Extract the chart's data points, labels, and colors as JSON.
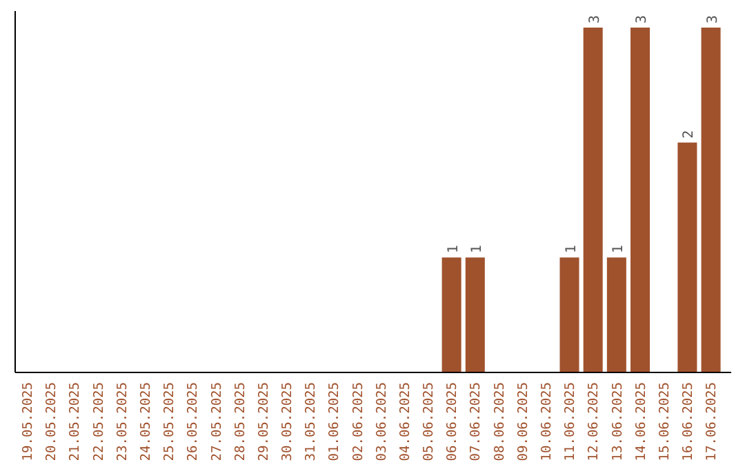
{
  "chart_data": {
    "type": "bar",
    "categories": [
      "19.05.2025",
      "20.05.2025",
      "21.05.2025",
      "22.05.2025",
      "23.05.2025",
      "24.05.2025",
      "25.05.2025",
      "26.05.2025",
      "27.05.2025",
      "28.05.2025",
      "29.05.2025",
      "30.05.2025",
      "31.05.2025",
      "01.06.2025",
      "02.06.2025",
      "03.06.2025",
      "04.06.2025",
      "05.06.2025",
      "06.06.2025",
      "07.06.2025",
      "08.06.2025",
      "09.06.2025",
      "10.06.2025",
      "11.06.2025",
      "12.06.2025",
      "13.06.2025",
      "14.06.2025",
      "15.06.2025",
      "16.06.2025",
      "17.06.2025"
    ],
    "values": [
      null,
      null,
      null,
      null,
      null,
      null,
      null,
      null,
      null,
      null,
      null,
      null,
      null,
      null,
      null,
      null,
      null,
      null,
      1,
      1,
      null,
      null,
      null,
      1,
      3,
      1,
      3,
      null,
      2,
      3
    ],
    "value_labels": [
      null,
      null,
      null,
      null,
      null,
      null,
      null,
      null,
      null,
      null,
      null,
      null,
      null,
      null,
      null,
      null,
      null,
      null,
      "1",
      "1",
      null,
      null,
      null,
      "1",
      "3",
      "1",
      "3",
      null,
      "2",
      "3"
    ],
    "color": "#a0522d"
  }
}
